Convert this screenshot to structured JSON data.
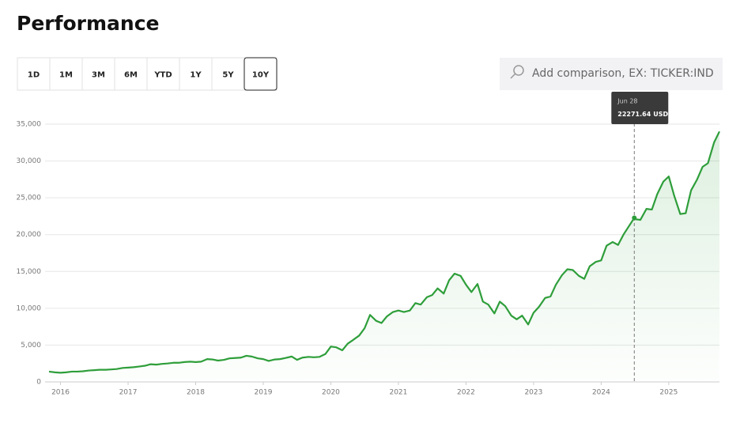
{
  "header": {
    "title": "Performance"
  },
  "range_buttons": [
    "1D",
    "1M",
    "3M",
    "6M",
    "YTD",
    "1Y",
    "5Y",
    "10Y"
  ],
  "selected_range": "10Y",
  "comparison_placeholder": "Add comparison, EX: TICKER:IND",
  "chart_data": {
    "type": "area",
    "color": "#2e9e3a",
    "x": [
      2015.83,
      2015.92,
      2016.0,
      2016.08,
      2016.17,
      2016.25,
      2016.33,
      2016.42,
      2016.5,
      2016.58,
      2016.67,
      2016.75,
      2016.83,
      2016.92,
      2017.0,
      2017.08,
      2017.17,
      2017.25,
      2017.33,
      2017.42,
      2017.5,
      2017.58,
      2017.67,
      2017.75,
      2017.83,
      2017.92,
      2018.0,
      2018.08,
      2018.17,
      2018.25,
      2018.33,
      2018.42,
      2018.5,
      2018.58,
      2018.67,
      2018.75,
      2018.83,
      2018.92,
      2019.0,
      2019.08,
      2019.17,
      2019.25,
      2019.33,
      2019.42,
      2019.5,
      2019.58,
      2019.67,
      2019.75,
      2019.83,
      2019.92,
      2020.0,
      2020.08,
      2020.17,
      2020.25,
      2020.33,
      2020.42,
      2020.5,
      2020.58,
      2020.67,
      2020.75,
      2020.83,
      2020.92,
      2021.0,
      2021.08,
      2021.17,
      2021.25,
      2021.33,
      2021.42,
      2021.5,
      2021.58,
      2021.67,
      2021.75,
      2021.83,
      2021.92,
      2022.0,
      2022.08,
      2022.17,
      2022.25,
      2022.33,
      2022.42,
      2022.5,
      2022.58,
      2022.67,
      2022.75,
      2022.83,
      2022.92,
      2023.0,
      2023.08,
      2023.17,
      2023.25,
      2023.33,
      2023.42,
      2023.5,
      2023.58,
      2023.67,
      2023.75,
      2023.83,
      2023.92,
      2024.0,
      2024.08,
      2024.17,
      2024.25,
      2024.33,
      2024.49,
      2024.5,
      2024.58,
      2024.67,
      2024.75,
      2024.83,
      2024.92,
      2025.0,
      2025.08,
      2025.17,
      2025.25,
      2025.33,
      2025.42,
      2025.5,
      2025.58,
      2025.67,
      2025.75
    ],
    "values": [
      1400,
      1300,
      1250,
      1300,
      1400,
      1400,
      1450,
      1550,
      1600,
      1650,
      1650,
      1700,
      1750,
      1900,
      1950,
      2000,
      2100,
      2200,
      2400,
      2350,
      2450,
      2500,
      2600,
      2600,
      2700,
      2750,
      2700,
      2750,
      3100,
      3050,
      2900,
      3000,
      3200,
      3250,
      3300,
      3550,
      3450,
      3200,
      3100,
      2850,
      3050,
      3100,
      3250,
      3450,
      3000,
      3300,
      3400,
      3350,
      3400,
      3800,
      4800,
      4700,
      4300,
      5200,
      5700,
      6300,
      7300,
      9100,
      8300,
      8000,
      8900,
      9500,
      9700,
      9500,
      9700,
      10700,
      10500,
      11500,
      11800,
      12700,
      12000,
      13800,
      14700,
      14400,
      13200,
      12200,
      13300,
      10900,
      10500,
      9300,
      10900,
      10300,
      9000,
      8500,
      9000,
      7800,
      9400,
      10200,
      11400,
      11600,
      13200,
      14500,
      15300,
      15200,
      14400,
      14000,
      15700,
      16300,
      16500,
      18500,
      19000,
      18600,
      20000,
      22271.64,
      22100,
      22000,
      23500,
      23400,
      25500,
      27200,
      27900,
      25300,
      22800,
      22900,
      26000,
      27500,
      29200,
      29700,
      32500,
      34000
    ],
    "xlim": [
      2015.83,
      2025.75
    ],
    "xticks": [
      2016,
      2017,
      2018,
      2019,
      2020,
      2021,
      2022,
      2023,
      2024,
      2025
    ],
    "ylim": [
      0,
      35000
    ],
    "yticks": [
      0,
      {
        "value": 5000,
        "label": "5,000"
      },
      {
        "value": 10000,
        "label": "10,000"
      },
      {
        "value": 15000,
        "label": "15,000"
      },
      {
        "value": 20000,
        "label": "20,000"
      },
      {
        "value": 25000,
        "label": "25,000"
      },
      {
        "value": 30000,
        "label": "30,000"
      },
      {
        "value": 35000,
        "label": "35,000"
      }
    ],
    "grid": true,
    "tooltip": {
      "date": "Jun 28",
      "x": 2024.49,
      "value": 22271.64,
      "unit": "USD"
    }
  }
}
